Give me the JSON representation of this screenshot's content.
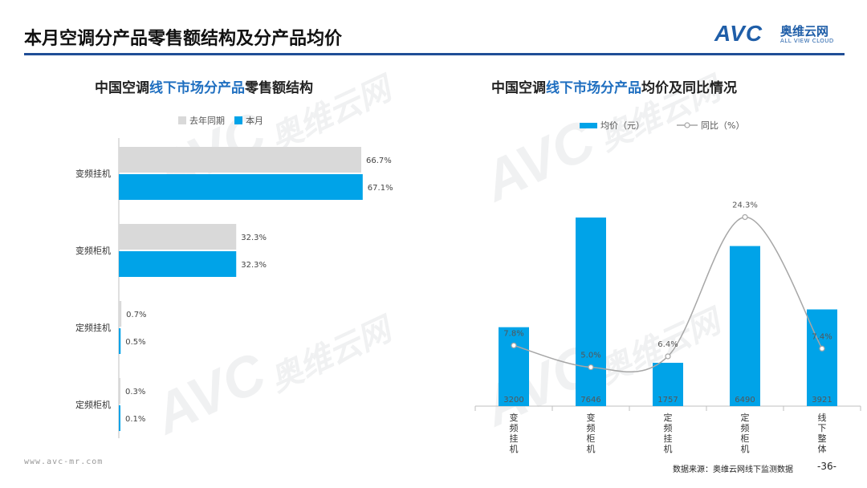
{
  "page": {
    "title": "本月空调分产品零售额结构及分产品均价",
    "brand": {
      "avc": "AVC",
      "name_cn": "奥维云网",
      "name_en": "ALL VIEW CLOUD"
    },
    "url": "www.avc-mr.com",
    "source": "数据来源：奥维云网线下监测数据",
    "page_number": "-36-",
    "watermark": {
      "avc": "AVC",
      "cn": "奥维云网",
      "en": "ALL VIEW CLOUD"
    }
  },
  "left_title": {
    "part1": "中国空调",
    "part2": "线下市场分产品",
    "part3": "零售额结构"
  },
  "right_title": {
    "part1": "中国空调",
    "part2": "线下市场分产品",
    "part3": "均价及同比情况"
  },
  "colors": {
    "accent": "#00a3e8",
    "gray": "#d9d9d9",
    "line": "#a6a6a6",
    "title_blue": "#1f4e96"
  },
  "chart_data": [
    {
      "type": "bar",
      "orientation": "horizontal",
      "title": "中国空调线下市场分产品零售额结构",
      "categories": [
        "变频挂机",
        "变频柜机",
        "定频挂机",
        "定频柜机"
      ],
      "series": [
        {
          "name": "去年同期",
          "values": [
            66.7,
            32.3,
            0.7,
            0.3
          ],
          "labels": [
            "66.7%",
            "32.3%",
            "0.7%",
            "0.3%"
          ]
        },
        {
          "name": "本月",
          "values": [
            67.1,
            32.3,
            0.5,
            0.1
          ],
          "labels": [
            "67.1%",
            "32.3%",
            "0.5%",
            "0.1%"
          ]
        }
      ],
      "unit": "%",
      "xlim": [
        0,
        100
      ],
      "legend_position": "top",
      "grid": false
    },
    {
      "type": "bar+line",
      "title": "中国空调线下市场分产品均价及同比情况",
      "categories": [
        "变频挂机",
        "变频柜机",
        "定频挂机",
        "定频柜机",
        "线下整体"
      ],
      "series": [
        {
          "name": "均价（元）",
          "type": "bar",
          "values": [
            3200,
            7646,
            1757,
            6490,
            3921
          ],
          "labels": [
            "3200",
            "7646",
            "1757",
            "6490",
            "3921"
          ]
        },
        {
          "name": "同比（%）",
          "type": "line",
          "values": [
            7.8,
            5.0,
            6.4,
            24.3,
            7.4
          ],
          "labels": [
            "7.8%",
            "5.0%",
            "6.4%",
            "24.3%",
            "7.4%"
          ]
        }
      ],
      "bar_ylim": [
        0,
        8200
      ],
      "line_ylim": [
        0,
        26
      ],
      "legend_position": "top",
      "grid": false
    }
  ]
}
